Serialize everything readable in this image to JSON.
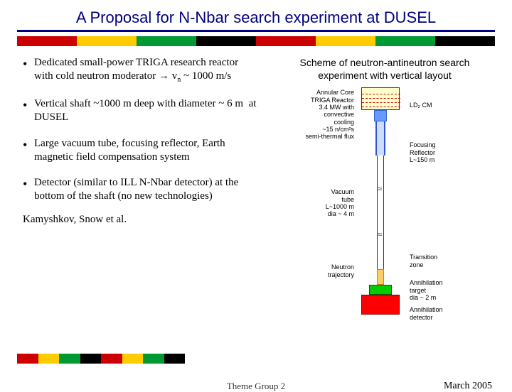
{
  "title": "A Proposal for N-Nbar search experiment at DUSEL",
  "stripe_colors": [
    "#cc0000",
    "#ffcc00",
    "#009933",
    "#000000",
    "#cc0000",
    "#ffcc00",
    "#009933",
    "#000000"
  ],
  "bullets": [
    {
      "html": "Dedicated small-power TRIGA research reactor with cold neutron moderator → v<span class='sub'>n</span> ~ 1000 m/s"
    },
    {
      "html": "Vertical shaft ~1000 m deep with diameter ~ 6 m &nbsp;at DUSEL"
    },
    {
      "html": "Large vacuum tube, focusing reflector, Earth magnetic field compensation system"
    },
    {
      "html": "Detector (similar to ILL N-Nbar detector) at the bottom of the shaft (no new technologies)"
    }
  ],
  "attribution": "Kamyshkov, Snow et al.",
  "scheme_caption_line1": "Scheme of neutron-antineutron search",
  "scheme_caption_line2": "experiment with vertical layout",
  "diagram": {
    "reactor_ticks": [
      8,
      14,
      20,
      26
    ],
    "break_positions": [
      136,
      200
    ],
    "labels": {
      "cold_mod": "LD₂ CM",
      "reactor": "Annular Core\nTRIGA Reactor\n3.4 MW with\nconvective\ncooling\n<E>~15 n/cm²s\nsemi-thermal flux",
      "reflector": "Focusing\nReflector\nL~150 m",
      "vacuum": "Vacuum\ntube\nL~1000 m\ndia ~ 4 m",
      "transition": "Transition\nzone",
      "trajectory": "Neutron\ntrajectory",
      "target": "Annihilation\ntarget\ndia ~ 2 m",
      "detector": "Annihilation\ndetector"
    },
    "colors": {
      "reactor_fill": "#ffffcc",
      "moderator_fill": "#6699ff",
      "reflector_fill": "#ccddff",
      "transition_fill": "#ffcc66",
      "target_fill": "#00cc00",
      "detector_fill": "#ff0000"
    }
  },
  "footer": {
    "center": "Theme Group 2",
    "right": "March 2005"
  }
}
